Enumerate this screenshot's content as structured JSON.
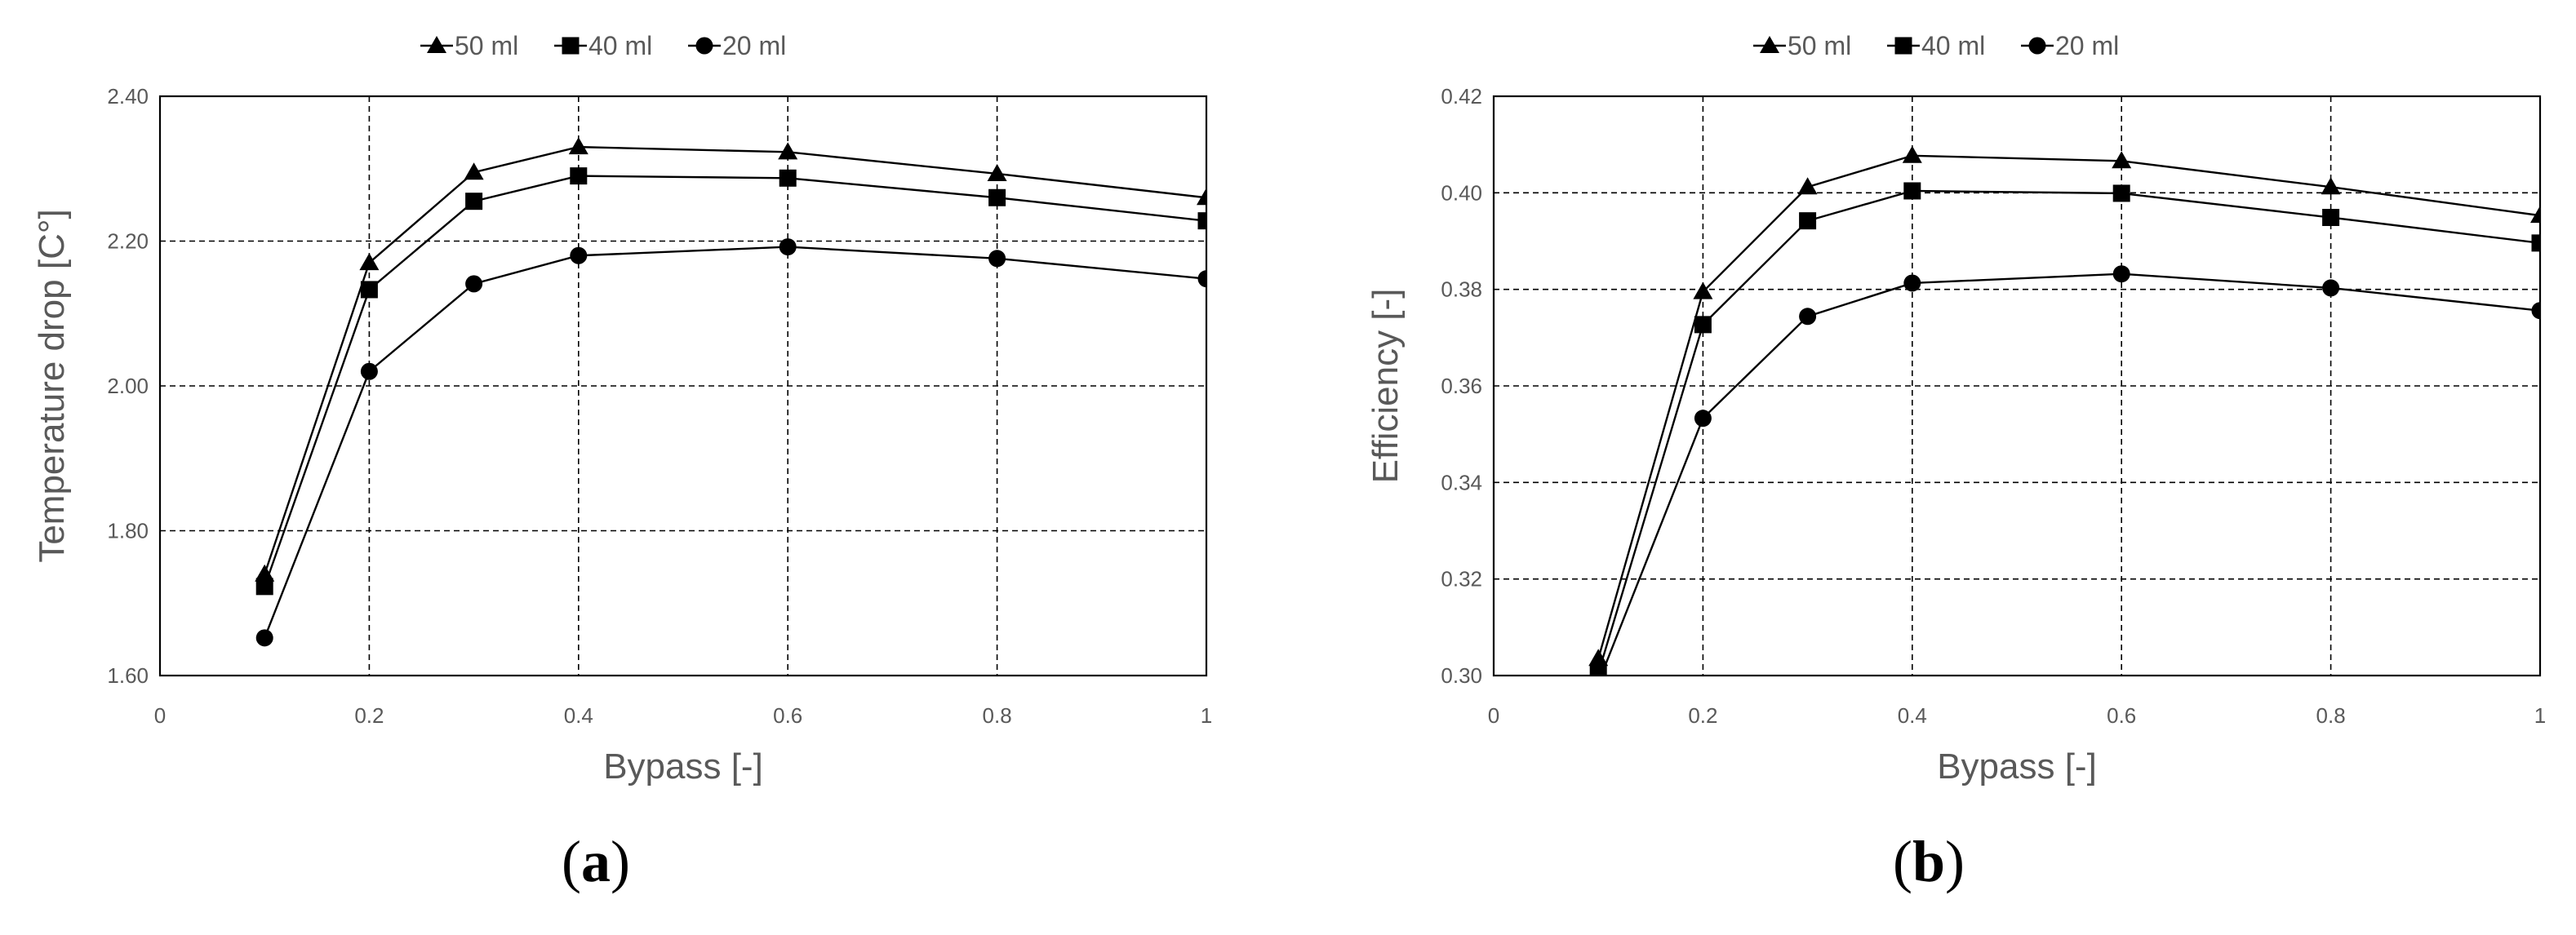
{
  "chart_data": [
    {
      "type": "line",
      "panel_label": {
        "open": "(",
        "letter": "a",
        "close": ")"
      },
      "xlabel": "Bypass [-]",
      "ylabel": "Temperature drop [C°]",
      "xlim": [
        0,
        1
      ],
      "ylim": [
        1.6,
        2.4
      ],
      "xticks": [
        "0",
        "0.2",
        "0.4",
        "0.6",
        "0.8",
        "1"
      ],
      "yticks": [
        "1.60",
        "1.80",
        "2.00",
        "2.20",
        "2.40"
      ],
      "grid": true,
      "legend_position": "top-center",
      "x": [
        0.1,
        0.2,
        0.3,
        0.4,
        0.6,
        0.8,
        1.0
      ],
      "series": [
        {
          "name": "50 ml",
          "marker": "triangle",
          "values": [
            1.74,
            2.17,
            2.295,
            2.33,
            2.323,
            2.293,
            2.26
          ]
        },
        {
          "name": "40 ml",
          "marker": "square",
          "values": [
            1.723,
            2.133,
            2.255,
            2.29,
            2.287,
            2.26,
            2.228
          ]
        },
        {
          "name": "20 ml",
          "marker": "circle",
          "values": [
            1.652,
            2.02,
            2.141,
            2.18,
            2.192,
            2.176,
            2.148
          ]
        }
      ]
    },
    {
      "type": "line",
      "panel_label": {
        "open": "(",
        "letter": "b",
        "close": ")"
      },
      "xlabel": "Bypass [-]",
      "ylabel": "Efficiency [-]",
      "xlim": [
        0,
        1
      ],
      "ylim": [
        0.3,
        0.42
      ],
      "xticks": [
        "0",
        "0.2",
        "0.4",
        "0.6",
        "0.8",
        "1"
      ],
      "yticks": [
        "0.30",
        "0.32",
        "0.34",
        "0.36",
        "0.38",
        "0.40",
        "0.42"
      ],
      "grid": true,
      "legend_position": "top-center",
      "x": [
        0.1,
        0.2,
        0.3,
        0.4,
        0.6,
        0.8,
        1.0
      ],
      "series": [
        {
          "name": "50 ml",
          "marker": "triangle",
          "values": [
            0.3035,
            0.3795,
            0.4012,
            0.4077,
            0.4066,
            0.4012,
            0.3953
          ]
        },
        {
          "name": "40 ml",
          "marker": "square",
          "values": [
            0.3005,
            0.3727,
            0.3942,
            0.4004,
            0.3999,
            0.3949,
            0.3896
          ]
        },
        {
          "name": "20 ml",
          "marker": "circle",
          "values": [
            0.2985,
            0.3533,
            0.3744,
            0.3813,
            0.3832,
            0.3803,
            0.3756
          ]
        }
      ]
    }
  ]
}
